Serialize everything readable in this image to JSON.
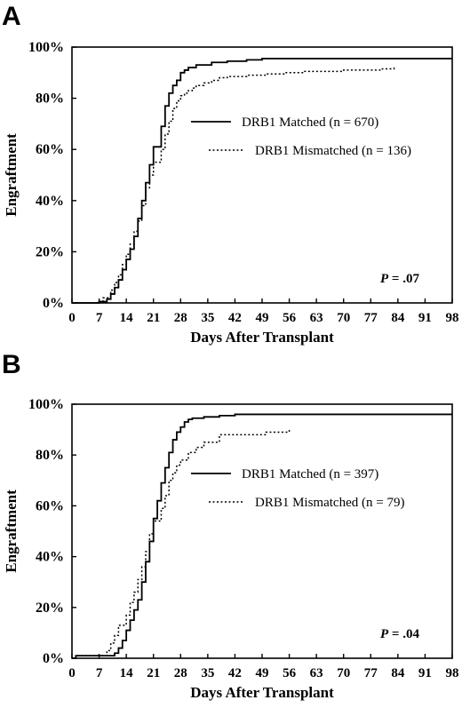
{
  "chart_data": [
    {
      "panel_label": "A",
      "type": "line",
      "step": true,
      "xlabel": "Days After Transplant",
      "ylabel": "Engraftment",
      "xlim": [
        0,
        98
      ],
      "ylim": [
        0,
        100
      ],
      "x_ticks": [
        "0",
        "7",
        "14",
        "21",
        "28",
        "35",
        "42",
        "49",
        "56",
        "63",
        "70",
        "77",
        "84",
        "91",
        "98"
      ],
      "y_ticks": [
        "0%",
        "20%",
        "40%",
        "60%",
        "80%",
        "100%"
      ],
      "annotation": {
        "p_label": "P",
        "p_value": " = .07"
      },
      "legend_position": "center-right",
      "series": [
        {
          "name": "DRB1 Matched (n = 670)",
          "style": "solid",
          "x": [
            0,
            7,
            9,
            10,
            11,
            12,
            13,
            14,
            15,
            16,
            17,
            18,
            19,
            20,
            21,
            22,
            23,
            24,
            25,
            26,
            27,
            28,
            29,
            30,
            32,
            34,
            36,
            40,
            45,
            49,
            98
          ],
          "y": [
            0,
            0.5,
            1.5,
            3.5,
            6,
            9,
            13,
            17,
            21,
            26,
            33,
            40,
            47,
            54,
            61,
            61,
            69,
            77,
            82,
            85,
            87,
            90,
            91,
            92,
            93,
            93,
            94,
            94.5,
            95,
            95.5,
            95.5
          ]
        },
        {
          "name": "DRB1 Mismatched (n = 136)",
          "style": "dotted",
          "x": [
            0,
            7,
            8,
            10,
            11,
            12,
            13,
            14,
            15,
            16,
            17,
            18,
            19,
            20,
            21,
            22,
            23,
            24,
            25,
            26,
            27,
            28,
            29,
            30,
            31,
            32,
            34,
            36,
            38,
            40,
            45,
            50,
            55,
            60,
            70,
            80,
            83
          ],
          "y": [
            0,
            0.5,
            2,
            5,
            8,
            11,
            15,
            19,
            23,
            28,
            32,
            38,
            45,
            50,
            55,
            55,
            60,
            66,
            71,
            76,
            79,
            81,
            82,
            83,
            84,
            85,
            86,
            87,
            88,
            88.5,
            89,
            89.5,
            90,
            90.5,
            91,
            91.5,
            92
          ]
        }
      ]
    },
    {
      "panel_label": "B",
      "type": "line",
      "step": true,
      "xlabel": "Days After Transplant",
      "ylabel": "Engraftment",
      "xlim": [
        0,
        98
      ],
      "ylim": [
        0,
        100
      ],
      "x_ticks": [
        "0",
        "7",
        "14",
        "21",
        "28",
        "35",
        "42",
        "49",
        "56",
        "63",
        "70",
        "77",
        "84",
        "91",
        "98"
      ],
      "y_ticks": [
        "0%",
        "20%",
        "40%",
        "60%",
        "80%",
        "100%"
      ],
      "annotation": {
        "p_label": "P",
        "p_value": " = .04"
      },
      "legend_position": "center-right",
      "series": [
        {
          "name": "DRB1 Matched (n = 397)",
          "style": "solid",
          "x": [
            0,
            1,
            10,
            11,
            12,
            13,
            14,
            15,
            16,
            17,
            18,
            19,
            20,
            21,
            22,
            23,
            24,
            25,
            26,
            27,
            28,
            29,
            30,
            31,
            32,
            33,
            34,
            36,
            38,
            40,
            42,
            45,
            98
          ],
          "y": [
            0,
            1,
            1,
            2,
            4,
            7,
            11,
            15,
            19,
            23,
            30,
            38,
            46,
            55,
            62,
            69,
            75,
            81,
            86,
            89,
            91,
            93,
            94,
            94.5,
            94.5,
            94.5,
            95,
            95,
            95.5,
            95.5,
            96,
            96,
            96
          ]
        },
        {
          "name": "DRB1 Mismatched (n = 79)",
          "style": "dotted",
          "x": [
            0,
            1,
            8,
            9,
            10,
            11,
            12,
            13,
            14,
            15,
            16,
            17,
            18,
            19,
            20,
            21,
            22,
            23,
            24,
            25,
            26,
            27,
            28,
            30,
            32,
            34,
            36,
            38,
            42,
            50,
            56
          ],
          "y": [
            0,
            1,
            1,
            3,
            6,
            9,
            13,
            13,
            17,
            22,
            26,
            31,
            36,
            42,
            49,
            54,
            54,
            59,
            64,
            70,
            73,
            76,
            78,
            81,
            83,
            85,
            85,
            88,
            88,
            89,
            90
          ]
        }
      ]
    }
  ]
}
